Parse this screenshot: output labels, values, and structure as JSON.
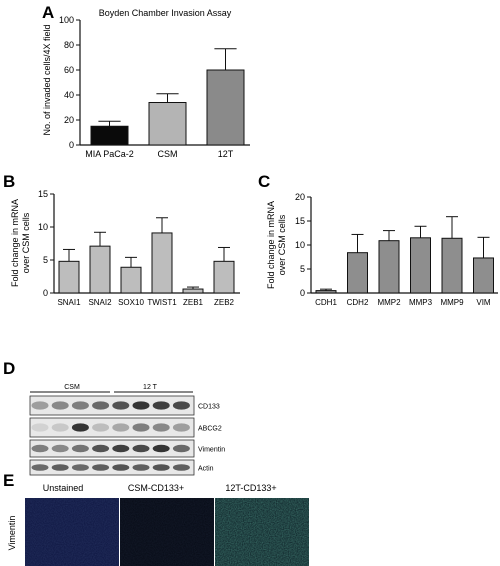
{
  "panels": {
    "a": "A",
    "b": "B",
    "c": "C",
    "d": "D",
    "e": "E"
  },
  "chart_data": [
    {
      "id": "A",
      "type": "bar",
      "title": "Boyden Chamber Invasion Assay",
      "ylabel": "No. of invaded cells/4X field",
      "xlabel": "",
      "categories": [
        "MIA PaCa-2",
        "CSM",
        "12T"
      ],
      "values": [
        15,
        34,
        60
      ],
      "errors": [
        4,
        7,
        17
      ],
      "colors": [
        "#0a0a0a",
        "#b4b4b4",
        "#8a8a8a"
      ],
      "ylim": [
        0,
        100
      ],
      "yticks": [
        0,
        20,
        40,
        60,
        80,
        100
      ]
    },
    {
      "id": "B",
      "type": "bar",
      "title": "",
      "ylabel": "Fold change in mRNA over CSM cells",
      "xlabel": "",
      "categories": [
        "SNAI1",
        "SNAI2",
        "SOX10",
        "TWIST1",
        "ZEB1",
        "ZEB2"
      ],
      "values": [
        4.8,
        7.1,
        3.9,
        9.1,
        0.6,
        4.8
      ],
      "errors": [
        1.8,
        2.1,
        1.5,
        2.3,
        0.3,
        2.1
      ],
      "colors": [
        "#bdbdbd"
      ],
      "ylim": [
        0,
        15
      ],
      "yticks": [
        0,
        5,
        10,
        15
      ]
    },
    {
      "id": "C",
      "type": "bar",
      "title": "",
      "ylabel": "Fold change in mRNA over CSM cells",
      "xlabel": "",
      "categories": [
        "CDH1",
        "CDH2",
        "MMP2",
        "MMP3",
        "MMP9",
        "VIM"
      ],
      "values": [
        0.5,
        8.4,
        10.9,
        11.5,
        11.4,
        7.3
      ],
      "errors": [
        0.3,
        3.8,
        2.1,
        2.4,
        4.5,
        4.3
      ],
      "colors": [
        "#8e8e8e"
      ],
      "ylim": [
        0,
        20
      ],
      "yticks": [
        0,
        5,
        10,
        15,
        20
      ]
    }
  ],
  "western_blot": {
    "groups": [
      "CSM",
      "12 T"
    ],
    "bands": [
      "CD133",
      "ABCG2",
      "Vimentin",
      "Actin"
    ]
  },
  "micrographs": {
    "ylabel": "Vimentin",
    "titles": [
      "Unstained",
      "CSM-CD133+",
      "12T-CD133+"
    ]
  }
}
